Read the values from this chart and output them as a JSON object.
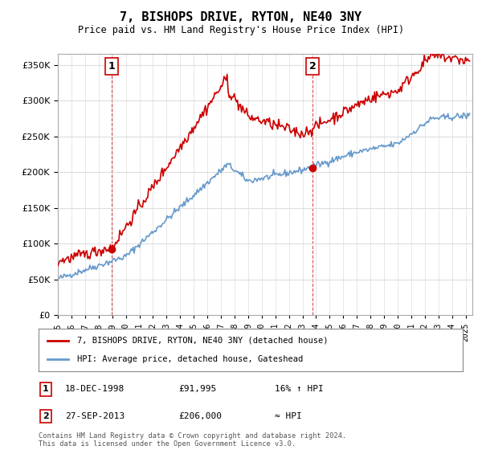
{
  "title": "7, BISHOPS DRIVE, RYTON, NE40 3NY",
  "subtitle": "Price paid vs. HM Land Registry's House Price Index (HPI)",
  "ytick_values": [
    0,
    50000,
    100000,
    150000,
    200000,
    250000,
    300000,
    350000
  ],
  "ylim": [
    0,
    365000
  ],
  "xlim_start": 1995.0,
  "xlim_end": 2025.5,
  "hpi_color": "#6699cc",
  "price_color": "#cc0000",
  "purchase1": {
    "year": 1998.96,
    "price": 91995,
    "label": "1"
  },
  "purchase2": {
    "year": 2013.75,
    "price": 206000,
    "label": "2"
  },
  "legend_entry1": "7, BISHOPS DRIVE, RYTON, NE40 3NY (detached house)",
  "legend_entry2": "HPI: Average price, detached house, Gateshead",
  "table_row1": [
    "1",
    "18-DEC-1998",
    "£91,995",
    "16% ↑ HPI"
  ],
  "table_row2": [
    "2",
    "27-SEP-2013",
    "£206,000",
    "≈ HPI"
  ],
  "footnote": "Contains HM Land Registry data © Crown copyright and database right 2024.\nThis data is licensed under the Open Government Licence v3.0.",
  "background_color": "#ffffff",
  "grid_color": "#dddddd",
  "dashed_line_color": "#cc0000"
}
